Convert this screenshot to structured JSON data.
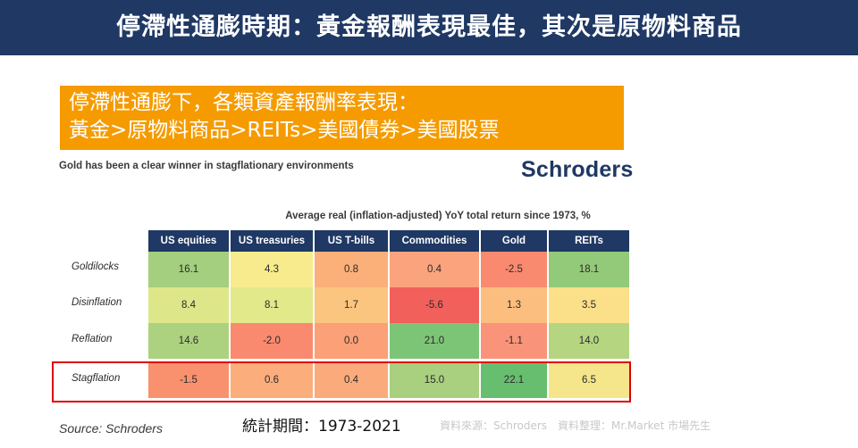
{
  "title": "停滯性通膨時期：黃金報酬表現最佳，其次是原物料商品",
  "callout": {
    "line1": "停滯性通膨下，各類資產報酬率表現：",
    "line2": "黃金>原物料商品>REITs>美國債券>美國股票"
  },
  "subtitle": "Gold has been a clear winner in stagflationary environments",
  "logo": "Schroders",
  "chart_data": {
    "type": "table",
    "title": "Average real (inflation-adjusted) YoY total return since 1973, %",
    "columns": [
      "US equities",
      "US treasuries",
      "US T-bills",
      "Commodities",
      "Gold",
      "REITs"
    ],
    "rows": [
      {
        "label": "Goldilocks",
        "values": [
          "16.1",
          "4.3",
          "0.8",
          "0.4",
          "-2.5",
          "18.1"
        ],
        "colors": [
          "#a3cf7e",
          "#f7eb8e",
          "#fbb07a",
          "#fba37d",
          "#f98a6f",
          "#93ca7a"
        ]
      },
      {
        "label": "Disinflation",
        "values": [
          "8.4",
          "8.1",
          "1.7",
          "-5.6",
          "1.3",
          "3.5"
        ],
        "colors": [
          "#dde789",
          "#e2e98b",
          "#fbc47f",
          "#f1605b",
          "#fbbe7e",
          "#fbdf89"
        ]
      },
      {
        "label": "Reflation",
        "values": [
          "14.6",
          "-2.0",
          "0.0",
          "21.0",
          "-1.1",
          "14.0"
        ],
        "colors": [
          "#acd27f",
          "#f98a6f",
          "#fba077",
          "#7dc576",
          "#f9947a",
          "#b5d581"
        ]
      },
      {
        "label": "Stagflation",
        "values": [
          "-1.5",
          "0.6",
          "0.4",
          "15.0",
          "22.1",
          "6.5"
        ],
        "colors": [
          "#f9916e",
          "#fbad7b",
          "#fbab7b",
          "#a8d07f",
          "#67be6e",
          "#f5e68b"
        ]
      }
    ],
    "highlighted_row": "Stagflation"
  },
  "footer": {
    "source": "Source: Schroders",
    "period": "統計期間：1973-2021",
    "credit": "資料來源：Schroders　資料整理：Mr.Market 市場先生"
  }
}
